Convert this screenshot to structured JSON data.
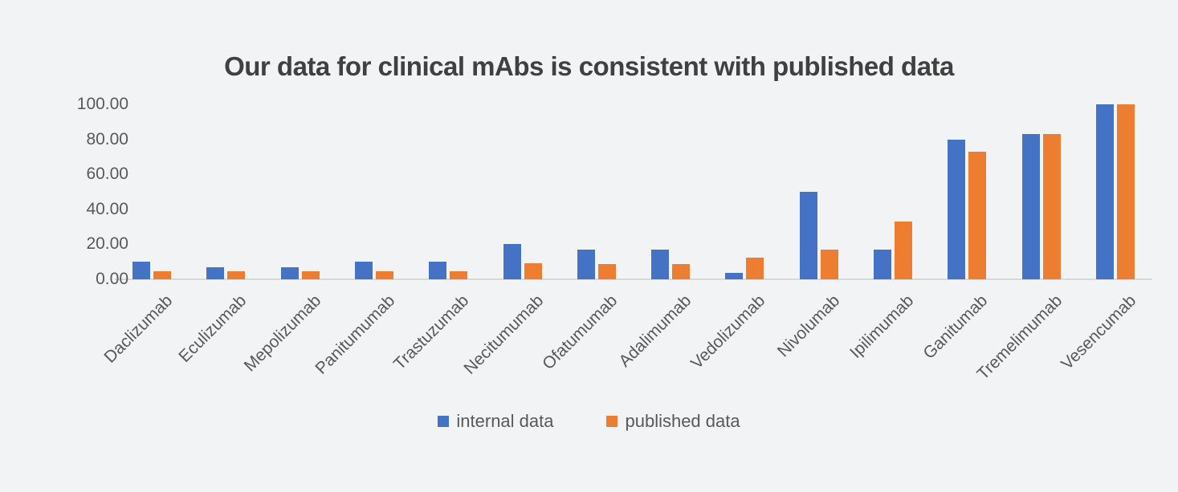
{
  "colors": {
    "background": "#f2f3f4",
    "title_text": "#404040",
    "axis_text": "#595959",
    "axis_line": "#d9d9d9",
    "series_blue": "#4472C4",
    "series_orange": "#ED7D31"
  },
  "chart_data": {
    "type": "bar",
    "title": "Our data for clinical mAbs is consistent with published data",
    "categories": [
      "Daclizumab",
      "Eculizumab",
      "Mepolizumab",
      "Panitumumab",
      "Trastuzumab",
      "Necitumumab",
      "Ofatumumab",
      "Adalimumab",
      "Vedolizumab",
      "Nivolumab",
      "Ipilimumab",
      "Ganitumab",
      "Tremelimumab",
      "Vesencumab"
    ],
    "series": [
      {
        "name": "internal data",
        "color": "#4472C4",
        "values": [
          10,
          7,
          7,
          10,
          10,
          20,
          17,
          17,
          3.5,
          50,
          17,
          80,
          83,
          100
        ]
      },
      {
        "name": "published data",
        "color": "#ED7D31",
        "values": [
          4.5,
          4.5,
          4.5,
          4.5,
          4.5,
          9,
          8.5,
          8.5,
          12.5,
          17,
          33,
          73,
          83,
          100
        ]
      }
    ],
    "xlabel": "",
    "ylabel": "",
    "ylim": [
      0,
      100
    ],
    "yticks": [
      {
        "value": 0,
        "label": "0.00"
      },
      {
        "value": 20,
        "label": "20.00"
      },
      {
        "value": 40,
        "label": "40.00"
      },
      {
        "value": 60,
        "label": "60.00"
      },
      {
        "value": 80,
        "label": "80.00"
      },
      {
        "value": 100,
        "label": "100.00"
      }
    ],
    "grid": false,
    "legend_position": "bottom",
    "x_label_rotation_deg": 45
  }
}
